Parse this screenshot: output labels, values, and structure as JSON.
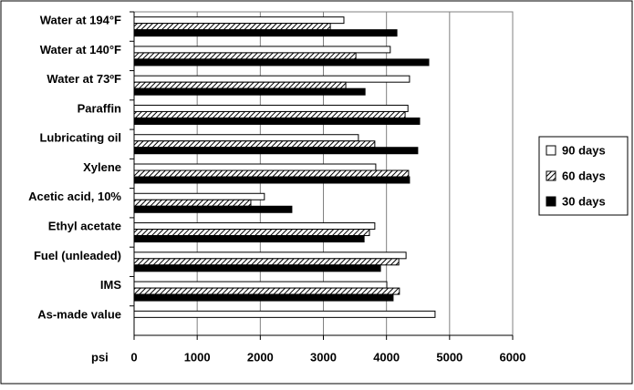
{
  "chart_data": {
    "type": "bar",
    "orientation": "horizontal",
    "categories": [
      "Water at 194°F",
      "Water at 140°F",
      "Water at 73ºF",
      "Paraffin",
      "Lubricating oil",
      "Xylene",
      "Acetic acid, 10%",
      "Ethyl acetate",
      "Fuel (unleaded)",
      "IMS",
      "As-made value"
    ],
    "series": [
      {
        "name": "90 days",
        "color": "#ffffff",
        "values": [
          3325,
          4060,
          4365,
          4340,
          3555,
          3830,
          2065,
          3815,
          4310,
          4005,
          4770
        ]
      },
      {
        "name": "60 days",
        "color": "#ffffff",
        "hatch": true,
        "values": [
          3110,
          3515,
          3355,
          4295,
          3815,
          4350,
          1850,
          3730,
          4195,
          4205,
          null
        ]
      },
      {
        "name": "30 days",
        "color": "#000000",
        "values": [
          4165,
          4670,
          3660,
          4525,
          4495,
          4365,
          2500,
          3645,
          3905,
          4105,
          null
        ]
      }
    ],
    "x_label": "psi",
    "xlim": [
      0,
      6000
    ],
    "xticks": [
      0,
      1000,
      2000,
      3000,
      4000,
      5000,
      6000
    ],
    "grid": true,
    "legend": "right"
  }
}
